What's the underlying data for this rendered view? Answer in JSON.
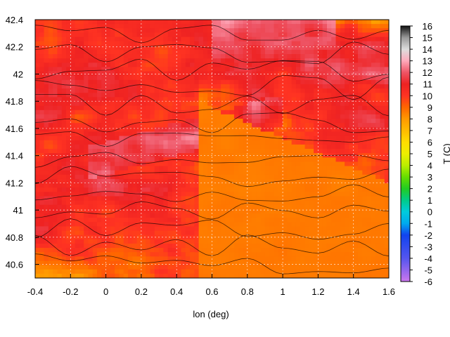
{
  "chart_data": {
    "type": "heatmap",
    "title": "",
    "xlabel": "lon (deg)",
    "ylabel": "",
    "colorbar_label": "T (C)",
    "xlim": [
      -0.4,
      1.6
    ],
    "ylim": [
      40.5,
      42.4
    ],
    "x_ticks": [
      "-0.4",
      "-0.2",
      "0",
      "0.2",
      "0.4",
      "0.6",
      "0.8",
      "1",
      "1.2",
      "1.4",
      "1.6"
    ],
    "y_ticks": [
      "40.6",
      "40.8",
      "41",
      "41.2",
      "41.4",
      "41.6",
      "41.8",
      "42",
      "42.2",
      "42.4"
    ],
    "colorbar_ticks": [
      "16",
      "15",
      "14",
      "13",
      "12",
      "11",
      "10",
      "9",
      "8",
      "7",
      "6",
      "5",
      "4",
      "3",
      "2",
      "1",
      "0",
      "-1",
      "-2",
      "-3",
      "-4",
      "-5",
      "-6"
    ],
    "colorbar_range": [
      -6,
      16
    ],
    "grid": true,
    "colormap_stops": [
      {
        "value": -6,
        "color": "#cc77ee"
      },
      {
        "value": -4,
        "color": "#5555ee"
      },
      {
        "value": -2,
        "color": "#1144ee"
      },
      {
        "value": -1,
        "color": "#00aaee"
      },
      {
        "value": 0,
        "color": "#00ccdd"
      },
      {
        "value": 1,
        "color": "#00cc88"
      },
      {
        "value": 2,
        "color": "#22cc22"
      },
      {
        "value": 3,
        "color": "#66dd00"
      },
      {
        "value": 4,
        "color": "#bbee00"
      },
      {
        "value": 5,
        "color": "#eeee00"
      },
      {
        "value": 6,
        "color": "#ffdd00"
      },
      {
        "value": 7,
        "color": "#ffbb00"
      },
      {
        "value": 8,
        "color": "#ff9900"
      },
      {
        "value": 9,
        "color": "#ff6600"
      },
      {
        "value": 10,
        "color": "#ff3322"
      },
      {
        "value": 11,
        "color": "#ee2222"
      },
      {
        "value": 12,
        "color": "#ee5566"
      },
      {
        "value": 13,
        "color": "#ffaabb"
      },
      {
        "value": 14,
        "color": "#dddddd"
      },
      {
        "value": 15,
        "color": "#999999"
      },
      {
        "value": 16,
        "color": "#111111"
      }
    ]
  }
}
